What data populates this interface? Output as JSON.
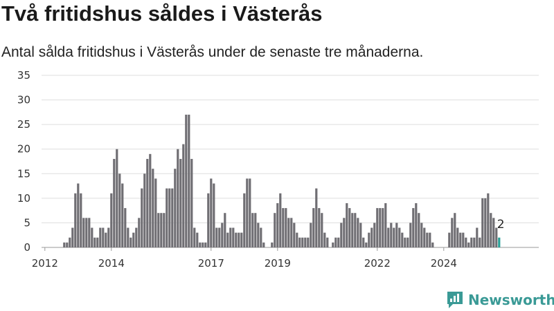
{
  "title": "Två fritidshus såldes i Västerås",
  "subtitle": "Antal sålda fritidshus i Västerås under de senaste tre månaderna.",
  "brand": "Newsworthy",
  "colors": {
    "bar": "#6f6e73",
    "highlight": "#2aa198",
    "grid": "#dddddd",
    "brand": "#3a9a96"
  },
  "chart_data": {
    "type": "bar",
    "start_period": "2012-01",
    "interval": "month",
    "x_tick_labels": [
      "2012",
      "2014",
      "2017",
      "2019",
      "2022",
      "2024"
    ],
    "x_tick_periods": [
      "2012-01",
      "2014-01",
      "2017-01",
      "2019-01",
      "2022-01",
      "2024-01"
    ],
    "ylim": [
      0,
      35
    ],
    "yticks": [
      0,
      5,
      10,
      15,
      20,
      25,
      30,
      35
    ],
    "grid": true,
    "values": [
      0,
      0,
      0,
      0,
      0,
      0,
      0,
      1,
      1,
      2,
      4,
      11,
      13,
      11,
      6,
      6,
      6,
      4,
      2,
      2,
      4,
      4,
      3,
      4,
      11,
      18,
      20,
      15,
      13,
      8,
      4,
      2,
      3,
      4,
      6,
      12,
      15,
      18,
      19,
      16,
      14,
      7,
      7,
      7,
      12,
      12,
      12,
      16,
      20,
      18,
      21,
      27,
      27,
      18,
      4,
      3,
      1,
      1,
      1,
      11,
      14,
      13,
      4,
      4,
      5,
      7,
      3,
      4,
      4,
      3,
      3,
      3,
      11,
      14,
      14,
      7,
      7,
      5,
      4,
      1,
      0,
      0,
      1,
      7,
      9,
      11,
      8,
      8,
      6,
      6,
      5,
      3,
      2,
      2,
      2,
      2,
      5,
      8,
      12,
      8,
      7,
      3,
      2,
      0,
      1,
      2,
      2,
      5,
      6,
      9,
      8,
      7,
      7,
      6,
      5,
      2,
      1,
      3,
      4,
      5,
      8,
      8,
      8,
      9,
      4,
      5,
      4,
      5,
      4,
      3,
      2,
      2,
      5,
      8,
      9,
      7,
      5,
      4,
      3,
      3,
      1,
      0,
      0,
      0,
      0,
      0,
      3,
      6,
      7,
      4,
      3,
      3,
      2,
      1,
      2,
      2,
      4,
      2,
      10,
      10,
      11,
      7,
      6,
      4,
      2
    ],
    "highlight_last": true,
    "annotation": "2"
  }
}
